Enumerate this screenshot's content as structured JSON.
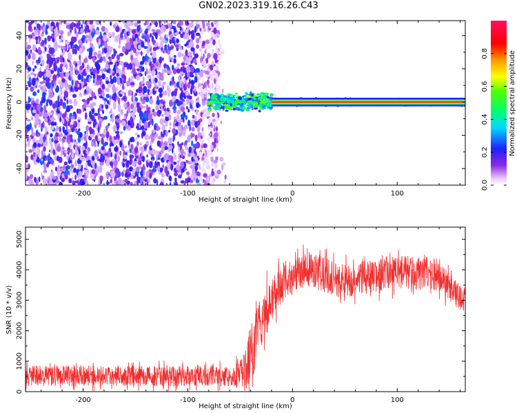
{
  "title": "GN02.2023.319.16.26.C43",
  "colors": {
    "snr_line": "#ef3030",
    "axis": "#000000",
    "background": "#ffffff"
  },
  "chart_data": [
    {
      "type": "heatmap",
      "title": "",
      "xlabel": "Height of straight line (km)",
      "ylabel": "Frequency (Hz)",
      "xlim": [
        -255,
        165
      ],
      "ylim": [
        -50,
        49
      ],
      "xticks": [
        -200,
        -100,
        0,
        100
      ],
      "yticks": [
        -40,
        -20,
        0,
        20,
        40
      ],
      "grid": false,
      "description_regions": [
        {
          "x_from": -255,
          "x_to": -65,
          "y_from": -50,
          "y_to": 49,
          "amplitude": [
            0.05,
            0.25
          ],
          "pattern": "noise"
        },
        {
          "x_from": -80,
          "x_to": -20,
          "y_from": -6,
          "y_to": 6,
          "amplitude": [
            0.2,
            0.6
          ],
          "pattern": "emerging signal"
        },
        {
          "x_from": -20,
          "x_to": 165,
          "y_from": -1.5,
          "y_to": 1.5,
          "amplitude": [
            0.6,
            0.95
          ],
          "pattern": "carrier line"
        }
      ],
      "colorbar": {
        "label": "Normalized spectral amplitude",
        "range": [
          0,
          1
        ],
        "ticks": [
          "0.0",
          "0.2",
          "0.4",
          "0.6",
          "0.8"
        ]
      }
    },
    {
      "type": "line",
      "title": "",
      "xlabel": "Height of straight line (km)",
      "ylabel": "SNR (10 * v/v)",
      "xlim": [
        -255,
        165
      ],
      "ylim": [
        0,
        5400
      ],
      "xticks": [
        -200,
        -100,
        0,
        100
      ],
      "yticks": [
        0,
        1000,
        2000,
        3000,
        4000,
        5000
      ],
      "grid": false,
      "series": [
        {
          "x": [
            -255,
            -240,
            -220,
            -200,
            -180,
            -160,
            -140,
            -120,
            -100,
            -80,
            -60,
            -50,
            -45,
            -40,
            -35,
            -30,
            -25,
            -20,
            -15,
            -10,
            -5,
            0,
            10,
            20,
            30,
            40,
            50,
            60,
            70,
            80,
            90,
            100,
            110,
            120,
            130,
            140,
            150,
            160,
            165
          ],
          "y": [
            500,
            520,
            530,
            520,
            500,
            520,
            510,
            500,
            520,
            520,
            500,
            560,
            700,
            1200,
            1800,
            2300,
            2700,
            3000,
            3300,
            3500,
            3650,
            3800,
            3950,
            4050,
            3850,
            3700,
            3650,
            3700,
            3750,
            3800,
            3900,
            3950,
            3900,
            3850,
            3950,
            3800,
            3400,
            3100,
            3000
          ],
          "spread": [
            350,
            350,
            350,
            350,
            330,
            330,
            330,
            330,
            330,
            330,
            330,
            450,
            700,
            900,
            1000,
            900,
            800,
            700,
            650,
            600,
            550,
            550,
            550,
            600,
            600,
            550,
            550,
            550,
            550,
            550,
            550,
            550,
            550,
            550,
            550,
            500,
            450,
            400,
            400
          ]
        }
      ]
    }
  ]
}
